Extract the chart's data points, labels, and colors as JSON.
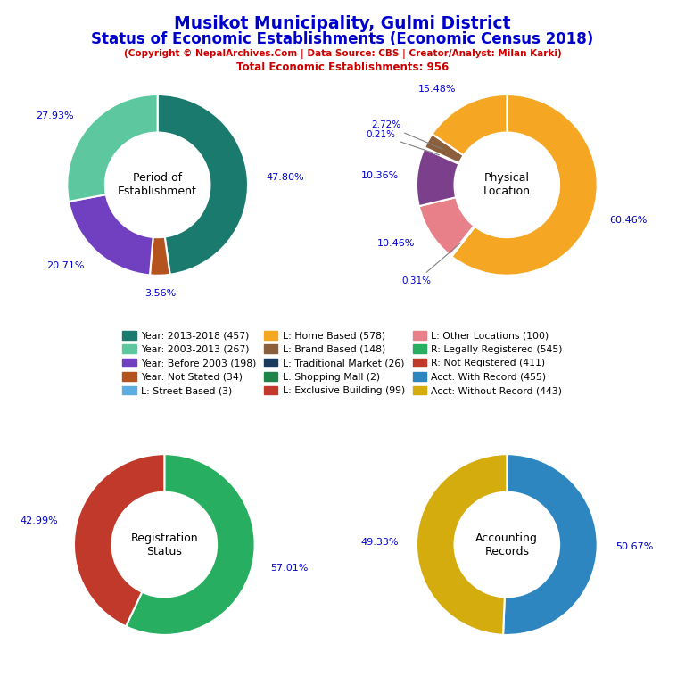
{
  "title_line1": "Musikot Municipality, Gulmi District",
  "title_line2": "Status of Economic Establishments (Economic Census 2018)",
  "subtitle": "(Copyright © NepalArchives.Com | Data Source: CBS | Creator/Analyst: Milan Karki)",
  "subtitle2": "Total Economic Establishments: 956",
  "title_color": "#0000CC",
  "subtitle_color": "#CC0000",
  "pie1": {
    "label": "Period of\nEstablishment",
    "values": [
      47.8,
      3.56,
      20.71,
      27.93
    ],
    "colors": [
      "#1a7a6e",
      "#b5531e",
      "#7040c0",
      "#5dc8a0"
    ],
    "pct_labels": [
      "47.80%",
      "3.56%",
      "20.71%",
      "27.93%"
    ],
    "startangle": 90
  },
  "pie2": {
    "label": "Physical\nLocation",
    "values": [
      60.46,
      0.31,
      10.46,
      10.36,
      0.21,
      2.72,
      15.48
    ],
    "colors": [
      "#f5a623",
      "#5dade2",
      "#e8808a",
      "#7b3f8c",
      "#2ecc71",
      "#8b5e3c",
      "#f5a623"
    ],
    "pct_labels": [
      "60.46%",
      "0.31%",
      "10.46%",
      "10.36%",
      "0.21%",
      "2.72%",
      "15.48%"
    ],
    "startangle": 90
  },
  "pie3": {
    "label": "Registration\nStatus",
    "values": [
      57.01,
      42.99
    ],
    "colors": [
      "#27ae60",
      "#c0392b"
    ],
    "pct_labels": [
      "57.01%",
      "42.99%"
    ],
    "startangle": 90
  },
  "pie4": {
    "label": "Accounting\nRecords",
    "values": [
      50.67,
      49.33
    ],
    "colors": [
      "#2e86c1",
      "#d4ac0d"
    ],
    "pct_labels": [
      "50.67%",
      "49.33%"
    ],
    "startangle": 90
  },
  "legend_items": [
    {
      "label": "Year: 2013-2018 (457)",
      "color": "#1a7a6e"
    },
    {
      "label": "Year: 2003-2013 (267)",
      "color": "#5dc8a0"
    },
    {
      "label": "Year: Before 2003 (198)",
      "color": "#7040c0"
    },
    {
      "label": "Year: Not Stated (34)",
      "color": "#b5531e"
    },
    {
      "label": "L: Street Based (3)",
      "color": "#5dade2"
    },
    {
      "label": "L: Home Based (578)",
      "color": "#f5a623"
    },
    {
      "label": "L: Brand Based (148)",
      "color": "#8b5e3c"
    },
    {
      "label": "L: Traditional Market (26)",
      "color": "#1a3a5c"
    },
    {
      "label": "L: Shopping Mall (2)",
      "color": "#1e8449"
    },
    {
      "label": "L: Exclusive Building (99)",
      "color": "#c0392b"
    },
    {
      "label": "L: Other Locations (100)",
      "color": "#e8808a"
    },
    {
      "label": "R: Legally Registered (545)",
      "color": "#27ae60"
    },
    {
      "label": "R: Not Registered (411)",
      "color": "#c0392b"
    },
    {
      "label": "Acct: With Record (455)",
      "color": "#2e86c1"
    },
    {
      "label": "Acct: Without Record (443)",
      "color": "#d4ac0d"
    }
  ],
  "pct_color": "#0000CC",
  "label_color": "#000000",
  "bg_color": "#ffffff"
}
